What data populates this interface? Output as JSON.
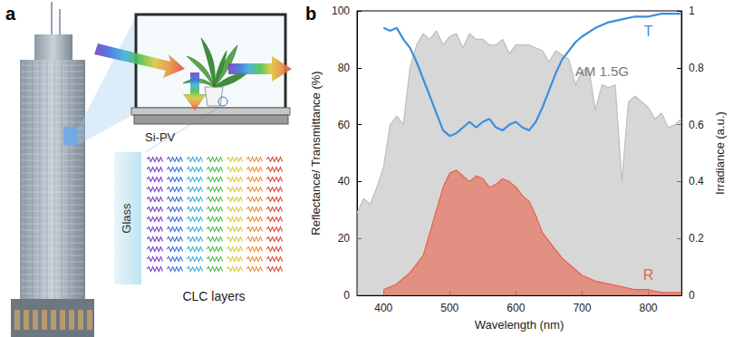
{
  "figure": {
    "panel_label": "a",
    "window_label": "Si-PV",
    "glass_label": "Glass",
    "layers_label": "CLC layers"
  },
  "chart_data": {
    "type": "line",
    "title": "b",
    "x_label": "Wavelength (nm)",
    "y_label": "Reflectance/ Transmittance (%)",
    "y2_label": "Irradiance (a.u.)",
    "xlim": [
      360,
      850
    ],
    "xticks": [
      400,
      500,
      600,
      700,
      800
    ],
    "ylim": [
      0,
      100
    ],
    "yticks": [
      0,
      20,
      40,
      60,
      80,
      100
    ],
    "y2lim": [
      0,
      1
    ],
    "y2ticks": [
      0,
      0.2,
      0.4,
      0.6,
      0.8,
      1
    ],
    "grid": false,
    "series": [
      {
        "name": "AM 1.5G",
        "type": "area",
        "axis": "y2",
        "color": "#bdbdbd",
        "x": [
          360,
          370,
          380,
          390,
          400,
          410,
          420,
          430,
          440,
          450,
          460,
          470,
          480,
          490,
          500,
          510,
          520,
          530,
          540,
          550,
          560,
          570,
          580,
          590,
          600,
          620,
          640,
          650,
          660,
          680,
          690,
          700,
          710,
          720,
          730,
          740,
          750,
          760,
          770,
          780,
          790,
          800,
          810,
          820,
          830,
          840,
          850
        ],
        "values": [
          0.29,
          0.34,
          0.32,
          0.38,
          0.45,
          0.6,
          0.63,
          0.6,
          0.8,
          0.88,
          0.92,
          0.9,
          0.93,
          0.88,
          0.91,
          0.92,
          0.87,
          0.92,
          0.9,
          0.9,
          0.88,
          0.88,
          0.9,
          0.85,
          0.88,
          0.88,
          0.86,
          0.82,
          0.86,
          0.83,
          0.74,
          0.79,
          0.8,
          0.65,
          0.74,
          0.73,
          0.74,
          0.4,
          0.68,
          0.7,
          0.68,
          0.66,
          0.62,
          0.64,
          0.59,
          0.6,
          0.62
        ]
      },
      {
        "name": "R",
        "type": "area",
        "color": "#e8604a",
        "x": [
          400,
          420,
          440,
          460,
          470,
          480,
          490,
          500,
          510,
          520,
          530,
          540,
          550,
          560,
          570,
          580,
          590,
          600,
          610,
          620,
          630,
          640,
          650,
          660,
          670,
          680,
          690,
          700,
          720,
          740,
          760,
          780,
          800,
          820,
          850
        ],
        "values": [
          2,
          4,
          8,
          14,
          22,
          30,
          38,
          43,
          44,
          42,
          40,
          42,
          41,
          38,
          39,
          41,
          40,
          38,
          35,
          33,
          28,
          22,
          19,
          16,
          13,
          11,
          9,
          7,
          5,
          4,
          3,
          2,
          2,
          1,
          1
        ]
      },
      {
        "name": "T",
        "type": "line",
        "color": "#3b8ede",
        "x": [
          400,
          410,
          420,
          430,
          440,
          450,
          460,
          470,
          480,
          490,
          500,
          510,
          520,
          530,
          540,
          550,
          560,
          570,
          580,
          590,
          600,
          610,
          620,
          630,
          640,
          650,
          660,
          670,
          680,
          690,
          700,
          720,
          740,
          760,
          780,
          800,
          820,
          850
        ],
        "values": [
          94,
          93,
          94,
          90,
          87,
          82,
          76,
          70,
          64,
          58,
          56,
          57,
          59,
          61,
          59,
          61,
          62,
          59,
          58,
          60,
          61,
          59,
          58,
          61,
          66,
          72,
          78,
          83,
          86,
          89,
          91,
          94,
          96,
          97,
          98,
          98,
          99,
          99
        ]
      }
    ]
  }
}
